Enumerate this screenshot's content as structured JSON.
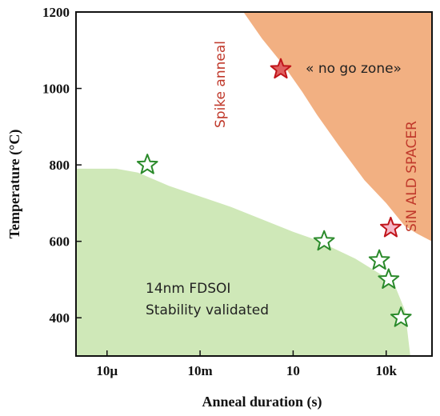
{
  "chart_data": {
    "type": "scatter",
    "xscale": "log",
    "xlabel": "Anneal duration (s)",
    "ylabel": "Temperature (°C)",
    "xlim": [
      1e-06,
      300000
    ],
    "ylim": [
      300,
      1200
    ],
    "xticks": [
      {
        "value": 1e-05,
        "label": "10µ"
      },
      {
        "value": 0.01,
        "label": "10m"
      },
      {
        "value": 10,
        "label": "10"
      },
      {
        "value": 10000,
        "label": "10k"
      }
    ],
    "yticks": [
      400,
      600,
      800,
      1000,
      1200
    ],
    "regions": [
      {
        "name": "no_go_zone",
        "label": "« no go zone»",
        "color": "#f2b082",
        "boundary": [
          [
            0.25,
            1200
          ],
          [
            1,
            1130
          ],
          [
            5,
            1060
          ],
          [
            20,
            990
          ],
          [
            60,
            930
          ],
          [
            300,
            850
          ],
          [
            2000,
            760
          ],
          [
            10000,
            700
          ],
          [
            40000,
            640
          ],
          [
            100000,
            620
          ],
          [
            300000,
            600
          ]
        ]
      },
      {
        "name": "stability_validated",
        "label_lines": [
          "14nm FDSOI",
          "Stability validated"
        ],
        "color": "#cfe8b8",
        "boundary": [
          [
            1e-06,
            790
          ],
          [
            2e-05,
            790
          ],
          [
            0.0001,
            780
          ],
          [
            0.001,
            745
          ],
          [
            0.1,
            690
          ],
          [
            10,
            625
          ],
          [
            50,
            605
          ],
          [
            1000,
            555
          ],
          [
            10000,
            505
          ],
          [
            20000,
            480
          ],
          [
            40000,
            420
          ],
          [
            60000,
            300
          ]
        ]
      }
    ],
    "series": [
      {
        "name": "Spike anneal",
        "label": "Spike anneal",
        "marker": "star",
        "fill": "#e06060",
        "stroke": "#c0141a",
        "points": [
          [
            4,
            1050
          ]
        ]
      },
      {
        "name": "SiN ALD SPACER",
        "label": "SiN ALD SPACER",
        "marker": "star",
        "fill": "#f6b8c8",
        "stroke": "#c0141a",
        "points": [
          [
            14000,
            635
          ]
        ]
      },
      {
        "name": "14nm FDSOI",
        "marker": "star",
        "fill": "#ffffff",
        "stroke": "#2a8a2a",
        "points": [
          [
            0.0002,
            800
          ],
          [
            100,
            600
          ],
          [
            6000,
            550
          ],
          [
            12000,
            500
          ],
          [
            30000,
            400
          ]
        ]
      }
    ]
  }
}
